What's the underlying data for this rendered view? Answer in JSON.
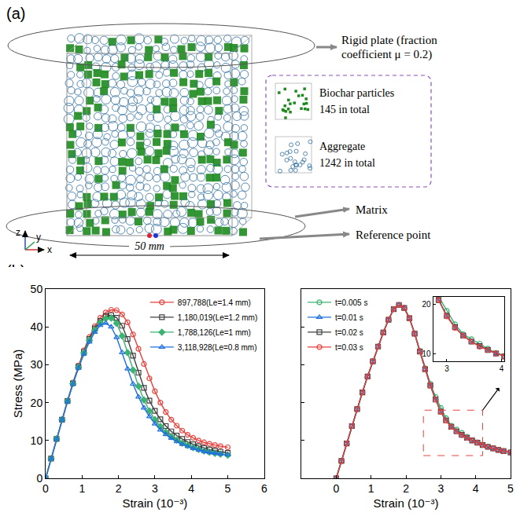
{
  "panel_labels": [
    "(a)",
    "(b)"
  ],
  "diagram": {
    "plate_label": "Rigid plate (fraction coefficient μ = 0.2)",
    "components": [
      {
        "label": "Biochar particles",
        "count_text": "145 in total",
        "color": "#1e8a1e"
      },
      {
        "label": "Aggregate",
        "count_text": "1242 in total",
        "color": "#2f6f9f"
      }
    ],
    "matrix_label": "Matrix",
    "reference_label": "Reference point",
    "dimension_label": "50 mm",
    "triad": [
      "z",
      "y",
      "x"
    ]
  },
  "chart_data": [
    {
      "type": "line",
      "x_label": "Strain (10⁻³)",
      "y_label": "Stress (MPa)",
      "xlim": [
        0,
        6
      ],
      "xticks": [
        0,
        1,
        2,
        3,
        4,
        5,
        6
      ],
      "ylim": [
        0,
        50
      ],
      "yticks": [
        0,
        10,
        20,
        30,
        40,
        50
      ],
      "grid": false,
      "legend": "upper right",
      "x": [
        0,
        0.15,
        0.3,
        0.45,
        0.6,
        0.75,
        0.9,
        1.05,
        1.2,
        1.35,
        1.5,
        1.65,
        1.8,
        1.95,
        2.1,
        2.25,
        2.4,
        2.55,
        2.7,
        2.85,
        3.0,
        3.15,
        3.3,
        3.45,
        3.6,
        3.75,
        3.9,
        4.05,
        4.2,
        4.35,
        4.5,
        4.65,
        4.8,
        5.0
      ],
      "series": [
        {
          "name": "897,788(Le=1.4 mm)",
          "color": "#e8413c",
          "marker": "circle-open",
          "line_style": "solid",
          "values": [
            0,
            5.2,
            10.4,
            15.5,
            20.5,
            25.3,
            29.8,
            33.8,
            37.3,
            40.2,
            42.4,
            43.8,
            44.5,
            44.4,
            43.3,
            41.2,
            38.0,
            34.2,
            30.2,
            26.4,
            23.0,
            20.0,
            17.5,
            15.5,
            13.9,
            12.6,
            11.5,
            10.7,
            10.0,
            9.5,
            9.1,
            8.8,
            8.5,
            8.2
          ]
        },
        {
          "name": "1,180,019(Le=1.2 mm)",
          "color": "#404040",
          "marker": "square-open",
          "line_style": "solid",
          "values": [
            0,
            5.2,
            10.4,
            15.5,
            20.4,
            25.1,
            29.5,
            33.4,
            36.8,
            39.6,
            41.6,
            42.8,
            43.1,
            42.4,
            40.3,
            36.8,
            32.4,
            27.9,
            23.9,
            20.5,
            17.8,
            15.6,
            13.8,
            12.4,
            11.3,
            10.4,
            9.6,
            9.0,
            8.5,
            8.0,
            7.6,
            7.3,
            7.0,
            6.7
          ]
        },
        {
          "name": "1,788,126(Le=1 mm)",
          "color": "#3cb371",
          "marker": "diamond",
          "line_style": "solid",
          "values": [
            0,
            5.2,
            10.4,
            15.5,
            20.4,
            25.0,
            29.3,
            33.1,
            36.4,
            39.1,
            41.1,
            42.2,
            42.3,
            40.9,
            37.6,
            33.2,
            28.6,
            24.3,
            20.7,
            17.8,
            15.5,
            13.7,
            12.2,
            11.0,
            10.1,
            9.3,
            8.7,
            8.1,
            7.6,
            7.2,
            6.9,
            6.6,
            6.4,
            6.1
          ]
        },
        {
          "name": "3,118,928(Le=0.8 mm)",
          "color": "#1f6fe0",
          "marker": "triangle-up-open",
          "line_style": "solid",
          "values": [
            0,
            5.2,
            10.4,
            15.5,
            20.3,
            24.9,
            29.1,
            32.8,
            36.0,
            38.6,
            40.4,
            41.0,
            40.0,
            37.2,
            33.2,
            28.9,
            24.9,
            21.5,
            18.6,
            16.3,
            14.4,
            12.8,
            11.6,
            10.6,
            9.7,
            9.0,
            8.4,
            7.9,
            7.5,
            7.1,
            6.8,
            6.6,
            6.4,
            6.2
          ]
        }
      ]
    },
    {
      "type": "line",
      "x_label": "Strain (10⁻³)",
      "xlim": [
        -1,
        5
      ],
      "xticks": [
        0,
        1,
        2,
        3,
        4,
        5
      ],
      "ylim": [
        0,
        50
      ],
      "yticks": [
        0,
        10,
        20,
        30,
        40,
        50
      ],
      "grid": false,
      "tick_labels": "x",
      "legend": "upper left",
      "x": [
        0,
        0.15,
        0.3,
        0.45,
        0.6,
        0.75,
        0.9,
        1.05,
        1.2,
        1.35,
        1.5,
        1.65,
        1.8,
        1.95,
        2.1,
        2.25,
        2.4,
        2.55,
        2.7,
        2.85,
        3.0,
        3.15,
        3.3,
        3.45,
        3.6,
        3.75,
        3.9,
        4.05,
        4.2,
        4.35,
        4.5,
        4.65,
        4.8,
        5.0
      ],
      "series": [
        {
          "name": "t=0.005 s",
          "color": "#3cb371",
          "marker": "circle-open",
          "line_style": "solid",
          "values": [
            0,
            4.6,
            9.2,
            13.8,
            18.3,
            22.7,
            26.9,
            30.9,
            34.8,
            38.5,
            41.9,
            44.7,
            45.8,
            45.0,
            42.3,
            38.3,
            33.7,
            29.1,
            25.0,
            21.5,
            18.6,
            15.9,
            13.9,
            12.9,
            12.0,
            11.0,
            10.1,
            9.5,
            8.9,
            8.4,
            7.9,
            7.5,
            7.2,
            6.8
          ]
        },
        {
          "name": "t=0.01 s",
          "color": "#1f6fe0",
          "marker": "triangle-up-open",
          "line_style": "solid",
          "values": [
            0,
            4.6,
            9.2,
            13.8,
            18.3,
            22.7,
            26.9,
            30.9,
            34.8,
            38.5,
            41.9,
            44.7,
            45.8,
            45.0,
            42.3,
            38.2,
            33.5,
            28.8,
            24.6,
            20.9,
            17.6,
            15.3,
            13.6,
            12.4,
            11.5,
            10.7,
            10.0,
            9.4,
            8.8,
            8.3,
            7.9,
            7.5,
            7.2,
            6.8
          ]
        },
        {
          "name": "t=0.02 s",
          "color": "#404040",
          "marker": "square-open",
          "line_style": "solid",
          "values": [
            0,
            4.6,
            9.2,
            13.8,
            18.3,
            22.7,
            26.9,
            30.9,
            34.8,
            38.5,
            41.9,
            44.7,
            45.8,
            45.0,
            42.3,
            38.2,
            33.5,
            28.8,
            24.5,
            20.8,
            17.6,
            15.3,
            13.6,
            12.4,
            11.5,
            10.7,
            10.0,
            9.4,
            8.8,
            8.3,
            7.9,
            7.5,
            7.2,
            6.8
          ]
        },
        {
          "name": "t=0.03 s",
          "color": "#e8413c",
          "marker": "circle-open",
          "line_style": "solid",
          "values": [
            0,
            4.6,
            9.2,
            13.8,
            18.3,
            22.7,
            26.9,
            30.9,
            34.8,
            38.5,
            41.9,
            44.7,
            45.8,
            45.0,
            42.3,
            38.2,
            33.5,
            28.8,
            24.5,
            20.8,
            17.5,
            15.2,
            13.6,
            12.4,
            11.4,
            10.7,
            10.0,
            9.4,
            8.8,
            8.3,
            7.9,
            7.5,
            7.2,
            6.8
          ]
        }
      ],
      "zoom_box": {
        "x": [
          2.5,
          4.2
        ],
        "y": [
          6,
          18
        ]
      },
      "inset": {
        "xlim": [
          2.75,
          4.05
        ],
        "xticks": [
          3,
          4
        ],
        "ylim": [
          8.5,
          21.5
        ],
        "yticks": [
          10,
          20
        ]
      }
    }
  ]
}
